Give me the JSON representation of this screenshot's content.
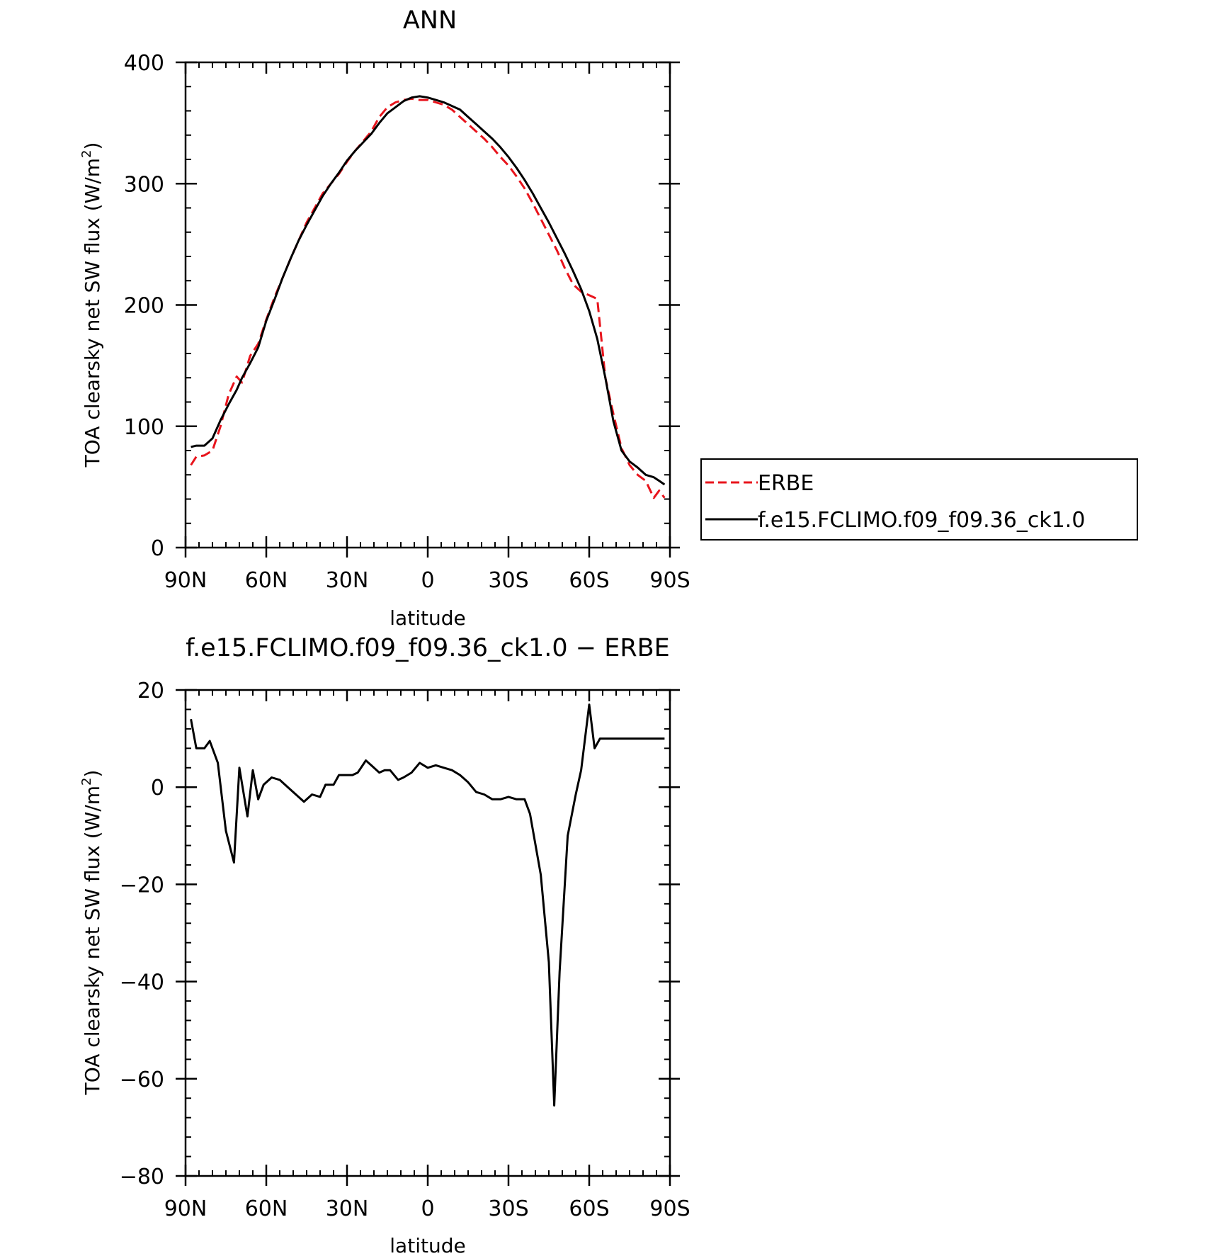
{
  "chart_data": [
    {
      "type": "line",
      "title": "ANN",
      "xlabel": "latitude",
      "ylabel": "TOA clearsky net SW flux (W/m²)",
      "ylabel_main": "TOA clearsky net SW flux (W/m",
      "ylabel_sup": "2",
      "ylabel_end": ")",
      "xlim": [
        90,
        -90
      ],
      "ylim": [
        0,
        400
      ],
      "xticks": [
        {
          "value": 90,
          "label": "90N"
        },
        {
          "value": 60,
          "label": "60N"
        },
        {
          "value": 30,
          "label": "30N"
        },
        {
          "value": 0,
          "label": "0"
        },
        {
          "value": -30,
          "label": "30S"
        },
        {
          "value": -60,
          "label": "60S"
        },
        {
          "value": -90,
          "label": "90S"
        }
      ],
      "yticks": [
        {
          "value": 0,
          "label": "0"
        },
        {
          "value": 100,
          "label": "100"
        },
        {
          "value": 200,
          "label": "200"
        },
        {
          "value": 300,
          "label": "300"
        },
        {
          "value": 400,
          "label": "400"
        }
      ],
      "legend_position": "right",
      "series": [
        {
          "name": "ERBE",
          "color": "#e8141c",
          "dash": "dashed",
          "x": [
            88,
            86,
            83,
            80,
            77,
            74,
            71,
            69,
            66,
            63,
            60,
            57,
            54,
            51,
            48,
            45,
            42,
            39,
            36,
            33,
            30,
            27,
            24,
            21,
            18,
            15,
            12,
            9,
            6,
            3,
            0,
            -3,
            -6,
            -9,
            -12,
            -15,
            -18,
            -21,
            -24,
            -27,
            -30,
            -33,
            -36,
            -39,
            -42,
            -45,
            -48,
            -51,
            -54,
            -57,
            -60,
            -63,
            -66,
            -69,
            -72,
            -75,
            -78,
            -81,
            -84,
            -86,
            -88
          ],
          "y": [
            68,
            75,
            76,
            80,
            100,
            126,
            141,
            136,
            158,
            168,
            188,
            206,
            222,
            238,
            253,
            268,
            280,
            292,
            300,
            308,
            318,
            327,
            335,
            343,
            355,
            363,
            367,
            369,
            370,
            369,
            369,
            367,
            365,
            361,
            355,
            349,
            343,
            337,
            330,
            322,
            315,
            306,
            296,
            284,
            271,
            258,
            245,
            230,
            217,
            211,
            208,
            205,
            140,
            110,
            82,
            68,
            60,
            55,
            41,
            47,
            41
          ]
        },
        {
          "name": "f.e15.FCLIMO.f09_f09.36_ck1.0",
          "color": "#000000",
          "dash": "solid",
          "x": [
            88,
            86,
            83,
            80,
            77,
            74,
            71,
            69,
            66,
            63,
            60,
            57,
            54,
            51,
            48,
            45,
            42,
            39,
            36,
            33,
            30,
            27,
            24,
            21,
            18,
            15,
            12,
            9,
            6,
            3,
            0,
            -3,
            -6,
            -9,
            -12,
            -15,
            -18,
            -21,
            -24,
            -27,
            -30,
            -33,
            -36,
            -39,
            -42,
            -45,
            -48,
            -51,
            -54,
            -57,
            -60,
            -63,
            -66,
            -69,
            -72,
            -75,
            -78,
            -81,
            -84,
            -86,
            -88
          ],
          "y": [
            83,
            84,
            84,
            90,
            105,
            118,
            130,
            140,
            152,
            165,
            187,
            204,
            222,
            238,
            253,
            266,
            278,
            290,
            300,
            309,
            319,
            327,
            334,
            341,
            350,
            358,
            363,
            368,
            371,
            372,
            371,
            369,
            367,
            364,
            361,
            355,
            349,
            343,
            337,
            330,
            322,
            313,
            303,
            292,
            280,
            268,
            255,
            242,
            228,
            213,
            195,
            172,
            140,
            104,
            80,
            71,
            66,
            60,
            58,
            55,
            52
          ]
        }
      ]
    },
    {
      "type": "line",
      "title": "f.e15.FCLIMO.f09_f09.36_ck1.0 − ERBE",
      "xlabel": "latitude",
      "ylabel": "TOA clearsky net SW flux (W/m²)",
      "ylabel_main": "TOA clearsky net SW flux (W/m",
      "ylabel_sup": "2",
      "ylabel_end": ")",
      "xlim": [
        90,
        -90
      ],
      "ylim": [
        -80,
        20
      ],
      "xticks": [
        {
          "value": 90,
          "label": "90N"
        },
        {
          "value": 60,
          "label": "60N"
        },
        {
          "value": 30,
          "label": "30N"
        },
        {
          "value": 0,
          "label": "0"
        },
        {
          "value": -30,
          "label": "30S"
        },
        {
          "value": -60,
          "label": "60S"
        },
        {
          "value": -90,
          "label": "90S"
        }
      ],
      "yticks": [
        {
          "value": -80,
          "label": "−80"
        },
        {
          "value": -60,
          "label": "−60"
        },
        {
          "value": -40,
          "label": "−40"
        },
        {
          "value": -20,
          "label": "−20"
        },
        {
          "value": 0,
          "label": "0"
        },
        {
          "value": 20,
          "label": "20"
        }
      ],
      "series": [
        {
          "color": "#000000",
          "dash": "solid",
          "x": [
            88,
            86,
            83,
            81,
            78,
            75,
            72,
            70,
            67,
            65,
            63,
            61,
            58,
            55,
            52,
            49,
            46,
            43,
            40,
            38,
            35,
            33,
            31,
            28,
            26,
            23,
            21,
            18,
            16,
            14,
            11,
            9,
            6,
            3,
            0,
            -3,
            -6,
            -9,
            -12,
            -15,
            -18,
            -21,
            -24,
            -27,
            -30,
            -33,
            -36,
            -38,
            -42,
            -45,
            -47,
            -49,
            -52,
            -55,
            -57,
            -60,
            -62,
            -64,
            -66,
            -68,
            -70,
            -73,
            -75,
            -78,
            -80,
            -82,
            -84,
            -86,
            -88
          ],
          "y": [
            14,
            8,
            8,
            9.5,
            5,
            -9,
            -15.5,
            4,
            -6,
            3.5,
            -2.5,
            0.5,
            2,
            1.5,
            0,
            -1.5,
            -3,
            -1.5,
            -2,
            0.5,
            0.5,
            2.5,
            2.5,
            2.5,
            3,
            5.5,
            4.5,
            3,
            3.5,
            3.5,
            1.5,
            2,
            3,
            5,
            4,
            4.5,
            4,
            3.5,
            2.5,
            1,
            -1,
            -1.5,
            -2.5,
            -2.5,
            -2,
            -2.5,
            -2.5,
            -5.5,
            -18,
            -36,
            -65.5,
            -38,
            -10,
            -1.5,
            3.5,
            17,
            8,
            10,
            10,
            10,
            10,
            10,
            10,
            10,
            10,
            10,
            10,
            10,
            10
          ]
        }
      ]
    }
  ]
}
